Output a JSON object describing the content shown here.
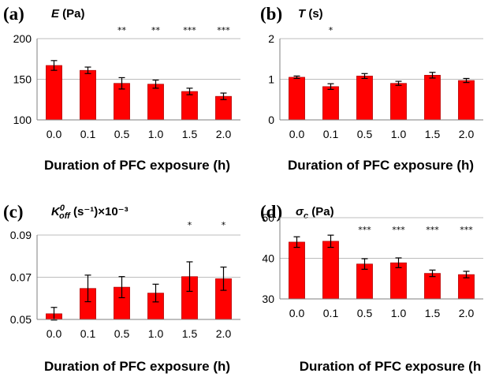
{
  "chart_data": [
    {
      "type": "bar",
      "panel": "(a)",
      "title_symbol": "E",
      "title_sub": "",
      "title_sup": "",
      "title_unit": " (Pa)",
      "categories": [
        "0.0",
        "0.1",
        "0.5",
        "1.0",
        "1.5",
        "2.0"
      ],
      "values": [
        167,
        161,
        145,
        144,
        135,
        129
      ],
      "errors": [
        6,
        4,
        7,
        5,
        4,
        4
      ],
      "significance": [
        "",
        "",
        "**",
        "**",
        "***",
        "***"
      ],
      "ylim": [
        100,
        200
      ],
      "yticks": [
        100,
        150,
        200
      ],
      "ytick_labels": [
        "100",
        "150",
        "200"
      ],
      "xlabel": "Duration of PFC exposure (h)",
      "grid": true,
      "color": "#ff0000"
    },
    {
      "type": "bar",
      "panel": "(b)",
      "title_symbol": "T",
      "title_sub": "",
      "title_sup": "",
      "title_unit": " (s)",
      "categories": [
        "0.0",
        "0.1",
        "0.5",
        "1.0",
        "1.5",
        "2.0"
      ],
      "values": [
        1.05,
        0.82,
        1.08,
        0.9,
        1.1,
        0.97
      ],
      "errors": [
        0.03,
        0.07,
        0.06,
        0.05,
        0.07,
        0.05
      ],
      "significance": [
        "",
        "*",
        "",
        "",
        "",
        ""
      ],
      "ylim": [
        0,
        2
      ],
      "yticks": [
        0,
        1,
        2
      ],
      "ytick_labels": [
        "0",
        "1",
        "2"
      ],
      "xlabel": "Duration of PFC exposure (h)",
      "grid": true,
      "color": "#ff0000"
    },
    {
      "type": "bar",
      "panel": "(c)",
      "title_symbol": "K",
      "title_sub": "off",
      "title_sup": "0",
      "title_unit": " (s⁻¹)×10⁻³",
      "categories": [
        "0.0",
        "0.1",
        "0.5",
        "1.0",
        "1.5",
        "2.0"
      ],
      "values": [
        0.0527,
        0.0647,
        0.0653,
        0.0625,
        0.0703,
        0.0693
      ],
      "errors": [
        0.003,
        0.0063,
        0.005,
        0.0042,
        0.007,
        0.0055
      ],
      "significance": [
        "",
        "",
        "",
        "",
        "*",
        "*"
      ],
      "ylim": [
        0.05,
        0.09
      ],
      "yticks": [
        0.05,
        0.07,
        0.09
      ],
      "ytick_labels": [
        "0.05",
        "0.07",
        "0.09"
      ],
      "xlabel": "Duration of PFC exposure (h)",
      "grid": true,
      "color": "#ff0000"
    },
    {
      "type": "bar",
      "panel": "(d)",
      "title_symbol": "σ",
      "title_sub": "c",
      "title_sup": "",
      "title_unit": " (Pa)",
      "categories": [
        "0.0",
        "0.1",
        "0.5",
        "1.0",
        "1.5",
        "2.0"
      ],
      "values": [
        44,
        44.2,
        38.6,
        38.9,
        36.3,
        36.0
      ],
      "errors": [
        1.3,
        1.5,
        1.3,
        1.2,
        0.8,
        0.8
      ],
      "significance": [
        "",
        "",
        "***",
        "***",
        "***",
        "***"
      ],
      "ylim": [
        30,
        50
      ],
      "yticks": [
        30,
        40,
        50
      ],
      "ytick_labels": [
        "30",
        "40",
        "50"
      ],
      "xlabel": "Duration of PFC exposure (h",
      "grid": true,
      "color": "#ff0000"
    }
  ]
}
